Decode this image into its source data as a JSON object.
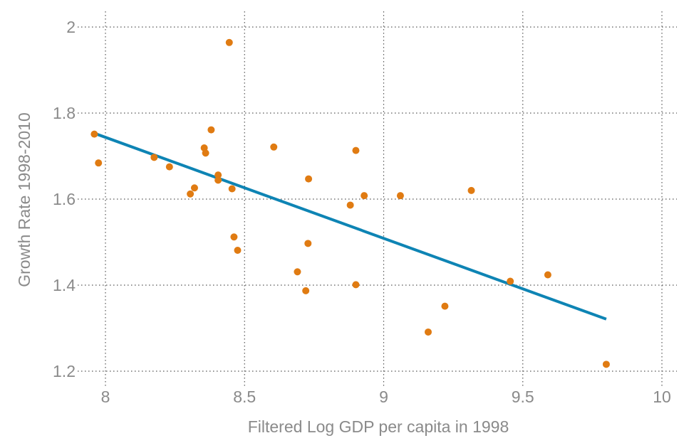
{
  "chart_data": {
    "type": "scatter",
    "title": "",
    "xlabel": "Filtered Log GDP per capita in 1998",
    "ylabel": "Growth Rate 1998-2010",
    "xlim": [
      7.9,
      10.05
    ],
    "ylim": [
      1.17,
      2.03
    ],
    "xticks": [
      8,
      8.5,
      9,
      9.5,
      10
    ],
    "yticks": [
      1.2,
      1.4,
      1.6,
      1.8,
      2
    ],
    "xtick_labels": [
      "8",
      "8.5",
      "9",
      "9.5",
      "10"
    ],
    "ytick_labels": [
      "1.2",
      "1.4",
      "1.6",
      "1.8",
      "2"
    ],
    "grid": true,
    "points": [
      {
        "x": 7.96,
        "y": 1.751
      },
      {
        "x": 7.975,
        "y": 1.684
      },
      {
        "x": 8.175,
        "y": 1.697
      },
      {
        "x": 8.23,
        "y": 1.675
      },
      {
        "x": 8.305,
        "y": 1.612
      },
      {
        "x": 8.32,
        "y": 1.626
      },
      {
        "x": 8.355,
        "y": 1.719
      },
      {
        "x": 8.36,
        "y": 1.707
      },
      {
        "x": 8.38,
        "y": 1.761
      },
      {
        "x": 8.405,
        "y": 1.656
      },
      {
        "x": 8.405,
        "y": 1.644
      },
      {
        "x": 8.445,
        "y": 1.964
      },
      {
        "x": 8.455,
        "y": 1.624
      },
      {
        "x": 8.462,
        "y": 1.512
      },
      {
        "x": 8.475,
        "y": 1.481
      },
      {
        "x": 8.605,
        "y": 1.721
      },
      {
        "x": 8.69,
        "y": 1.431
      },
      {
        "x": 8.72,
        "y": 1.387
      },
      {
        "x": 8.728,
        "y": 1.497
      },
      {
        "x": 8.73,
        "y": 1.647
      },
      {
        "x": 8.88,
        "y": 1.586
      },
      {
        "x": 8.9,
        "y": 1.713
      },
      {
        "x": 8.9,
        "y": 1.401
      },
      {
        "x": 8.93,
        "y": 1.608
      },
      {
        "x": 9.06,
        "y": 1.608
      },
      {
        "x": 9.16,
        "y": 1.291
      },
      {
        "x": 9.22,
        "y": 1.351
      },
      {
        "x": 9.315,
        "y": 1.62
      },
      {
        "x": 9.455,
        "y": 1.409
      },
      {
        "x": 9.59,
        "y": 1.424
      },
      {
        "x": 9.8,
        "y": 1.216
      }
    ],
    "fit_line": {
      "x": [
        7.96,
        9.8
      ],
      "y": [
        1.753,
        1.321
      ]
    },
    "colors": {
      "points": "#e07b12",
      "fit_line": "#0e84b4",
      "grid": "#555555",
      "text": "#8a8a8a"
    }
  }
}
